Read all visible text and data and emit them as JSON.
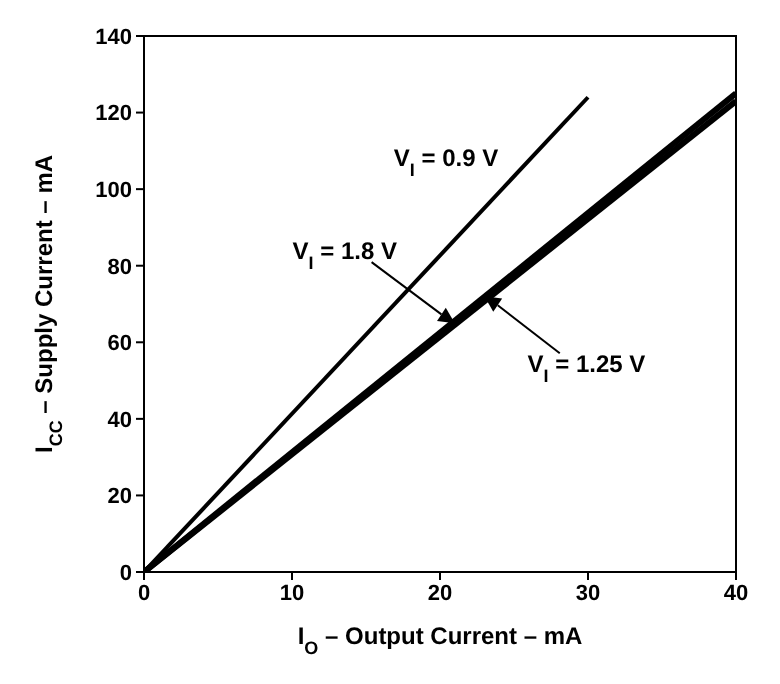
{
  "chart_data": {
    "type": "line",
    "xlabel": "I$_{O}$ – Output Current – mA",
    "ylabel": "I$_{CC}$ – Supply Current – mA",
    "xlim": [
      0,
      40
    ],
    "xticks": [
      0,
      10,
      20,
      30,
      40
    ],
    "ylim": [
      0,
      140
    ],
    "yticks": [
      0,
      20,
      40,
      60,
      80,
      100,
      120,
      140
    ],
    "marker": "none",
    "series": [
      {
        "color": "#000000",
        "x": [
          0,
          30
        ],
        "values": [
          0,
          124
        ]
      },
      {
        "color": "#000000",
        "x": [
          0,
          40
        ],
        "values": [
          0,
          123
        ]
      },
      {
        "color": "#000000",
        "x": [
          0,
          40
        ],
        "values": [
          0,
          125
        ]
      }
    ],
    "annotations": [
      {
        "text": "V$_{I}$ = 0.9 V",
        "x": 25,
        "y": 103
      },
      {
        "text": "V$_{I}$ = 1.8 V",
        "x": 21,
        "y": 65
      },
      {
        "text": "V$_{I}$ = 1.25 V",
        "x": 23,
        "y": 72
      }
    ]
  }
}
